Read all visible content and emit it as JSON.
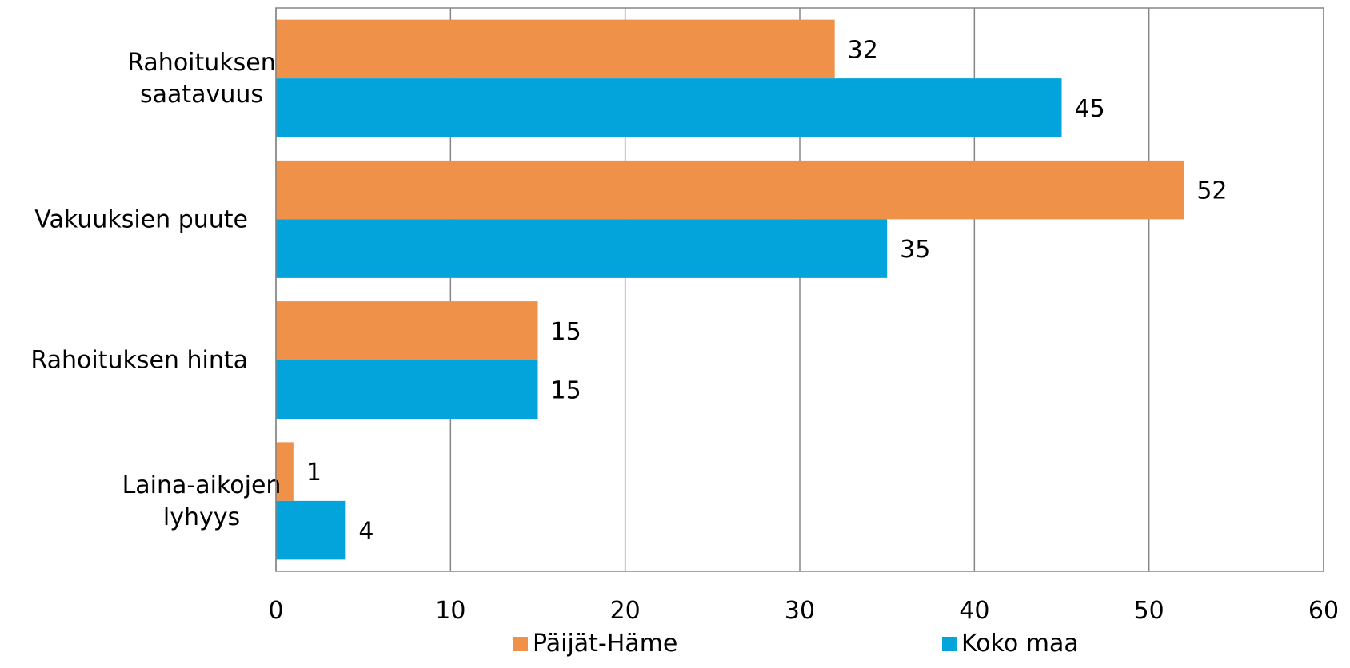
{
  "chart_data": {
    "type": "bar",
    "orientation": "horizontal",
    "categories": [
      "Rahoituksen saatavuus",
      "Vakuuksien puute",
      "Rahoituksen hinta",
      "Laina-aikojen lyhyys"
    ],
    "series": [
      {
        "name": "Päijät-Häme",
        "color": "#F0914A",
        "values": [
          32,
          52,
          15,
          1
        ],
        "labels": [
          "32",
          "52",
          "15",
          "1"
        ]
      },
      {
        "name": "Koko maa",
        "color": "#03A4DB",
        "values": [
          45,
          35,
          15,
          4
        ],
        "labels": [
          "45",
          "35",
          "15",
          "4"
        ]
      }
    ],
    "xlim": [
      0,
      60
    ],
    "x_ticks": [
      "0",
      "10",
      "20",
      "30",
      "40",
      "50",
      "60"
    ],
    "grid": true,
    "legend_position": "bottom"
  }
}
